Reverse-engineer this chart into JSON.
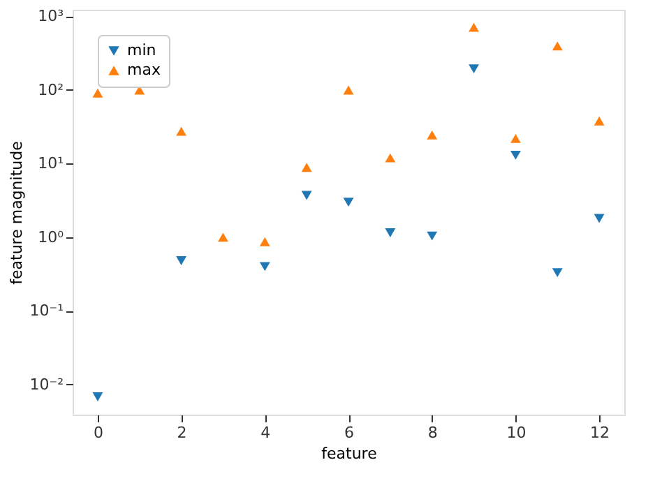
{
  "chart_data": {
    "type": "scatter",
    "xlabel": "feature",
    "ylabel": "feature magnitude",
    "log": "y",
    "grid": false,
    "legend": "top left",
    "x": [
      0,
      1,
      2,
      3,
      4,
      5,
      6,
      7,
      8,
      9,
      10,
      11,
      12
    ],
    "xlim": [
      -0.6,
      12.6
    ],
    "xticks": [
      0,
      2,
      4,
      6,
      8,
      10,
      12
    ],
    "ylim": [
      0.0039,
      1230
    ],
    "yticks": [
      {
        "value": 0.01,
        "label": "10⁻²"
      },
      {
        "value": 0.1,
        "label": "10⁻¹"
      },
      {
        "value": 1,
        "label": "10⁰"
      },
      {
        "value": 10,
        "label": "10¹"
      },
      {
        "value": 100,
        "label": "10²"
      },
      {
        "value": 1000,
        "label": "10³"
      }
    ],
    "series": [
      {
        "name": "min",
        "color": "#1f77b4",
        "marker": "triangle_down",
        "values": [
          0.0068,
          null,
          0.48,
          null,
          0.4,
          3.7,
          3.0,
          1.15,
          1.04,
          194,
          13,
          0.33,
          1.8
        ]
      },
      {
        "name": "max",
        "color": "#ff7f0e",
        "marker": "triangle",
        "values": [
          91,
          100,
          27.5,
          1.0,
          0.87,
          8.9,
          100,
          12,
          24.5,
          711,
          22,
          397,
          38
        ]
      }
    ]
  }
}
